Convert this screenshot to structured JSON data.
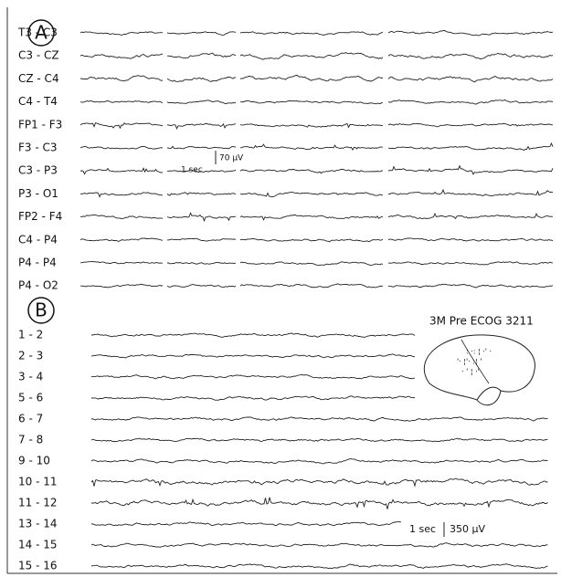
{
  "panels": [
    {
      "label": "A",
      "channels": [
        "T3 - C3",
        "C3 - CZ",
        "CZ - C4",
        "C4 - T4",
        "FP1 - F3",
        "F3 - C3",
        "C3 - P3",
        "P3 - O1",
        "FP2 - F4",
        "C4 - P4",
        "P4 - P4",
        "P4 - O2"
      ],
      "scale": {
        "time": "1 sec",
        "amplitude": "70 μV"
      }
    },
    {
      "label": "B",
      "title": "3M Pre ECOG 3211",
      "channels": [
        "1 - 2",
        "2 - 3",
        "3 - 4",
        "5 - 6",
        "6 - 7",
        "7 - 8",
        "9 - 10",
        "10 - 11",
        "11 - 12",
        "13 - 14",
        "14 - 15",
        "15 - 16"
      ],
      "scale": {
        "time": "1 sec",
        "amplitude": "350 μV"
      }
    }
  ]
}
